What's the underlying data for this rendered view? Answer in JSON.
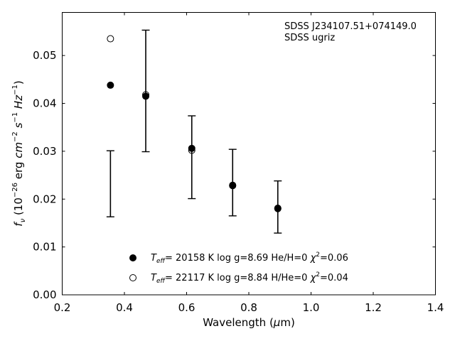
{
  "chart_data": {
    "type": "scatter",
    "xlabel": "Wavelength (μm)",
    "ylabel": "f_ν (10^−26 erg cm^−2 s^−1 Hz^−1)",
    "xlim": [
      0.2,
      1.4
    ],
    "ylim": [
      0.0,
      0.059
    ],
    "x_ticks": [
      "0.2",
      "0.4",
      "0.6",
      "0.8",
      "1.0",
      "1.2",
      "1.4"
    ],
    "y_ticks": [
      "0.00",
      "0.01",
      "0.02",
      "0.03",
      "0.04",
      "0.05"
    ],
    "grid": false,
    "annotation": [
      "SDSS J234107.51+074149.0",
      "SDSS ugriz"
    ],
    "observed": {
      "x": [
        0.3551,
        0.4686,
        0.6166,
        0.748,
        0.8932
      ],
      "y_low": [
        0.0163,
        0.0299,
        0.0201,
        0.0165,
        0.0129
      ],
      "y_high": [
        0.0301,
        0.0553,
        0.0374,
        0.0304,
        0.0238
      ]
    },
    "series": [
      {
        "name": "T_eff= 20158 K  log g=8.69  He/H=0  χ²=0.06",
        "marker": "filled-circle",
        "x": [
          0.3551,
          0.4686,
          0.6166,
          0.748,
          0.8932
        ],
        "y": [
          0.0438,
          0.0415,
          0.0306,
          0.0229,
          0.0181
        ]
      },
      {
        "name": "T_eff= 22117 K  log g=8.84  H/He=0  χ²=0.04",
        "marker": "open-circle",
        "x": [
          0.3551,
          0.4686,
          0.6166,
          0.748,
          0.8932
        ],
        "y": [
          0.0535,
          0.0418,
          0.0302,
          0.0228,
          0.018
        ]
      }
    ],
    "legend": [
      {
        "teff": "= 20158 K  log g=8.69  He/H=0",
        "chi": "=0.06"
      },
      {
        "teff": "= 22117 K  log g=8.84  H/He=0",
        "chi": "=0.04"
      }
    ]
  }
}
